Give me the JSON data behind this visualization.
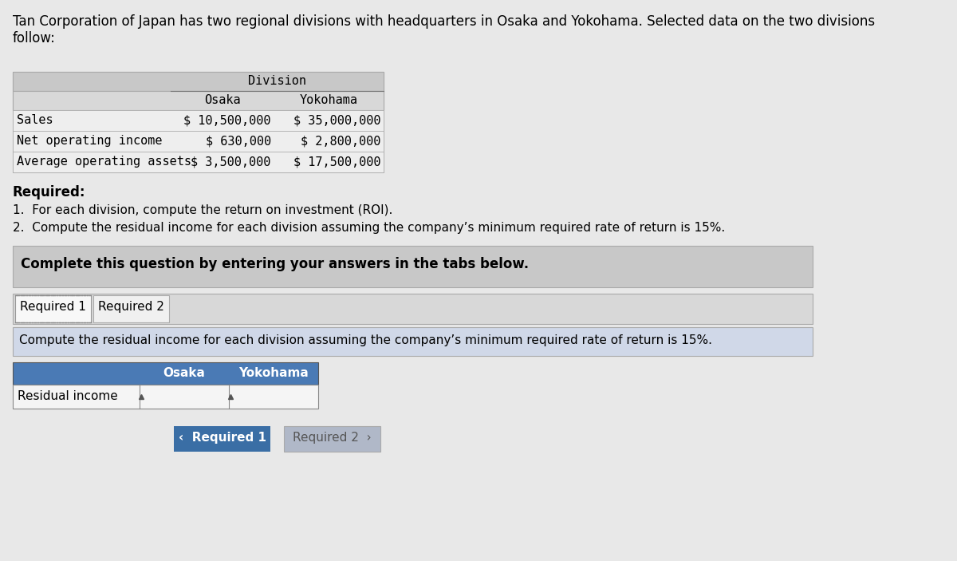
{
  "bg_color": "#e8e8e8",
  "white": "#ffffff",
  "header_text": "Tan Corporation of Japan has two regional divisions with headquarters in Osaka and Yokohama. Selected data on the two divisions\nfollow:",
  "table1": {
    "header_top": "Division",
    "col_headers": [
      "Osaka",
      "Yokohama"
    ],
    "row_labels": [
      "Sales",
      "Net operating income",
      "Average operating assets"
    ],
    "osaka_values": [
      "$ 10,500,000",
      "$ 630,000",
      "$ 3,500,000"
    ],
    "yokohama_values": [
      "$ 35,000,000",
      "$ 2,800,000",
      "$ 17,500,000"
    ],
    "bg_header": "#d0d0d0",
    "bg_data": "#f0f0f0"
  },
  "required_label": "Required:",
  "req_items": [
    "1.  For each division, compute the return on investment (ROI).",
    "2.  Compute the residual income for each division assuming the company’s minimum required rate of return is 15%."
  ],
  "complete_box_bg": "#c8c8c8",
  "complete_text": "Complete this question by entering your answers in the tabs below.",
  "tabs": [
    "Required 1",
    "Required 2"
  ],
  "tab_active_bg": "#ffffff",
  "tab_inactive_bg": "#f0f0f0",
  "instruction_bg": "#d0d8e8",
  "instruction_text": "Compute the residual income for each division assuming the company’s minimum required rate of return is 15%.",
  "table2": {
    "col_headers": [
      "Osaka",
      "Yokohama"
    ],
    "row_labels": [
      "Residual income"
    ],
    "header_bg": "#4a7ab5",
    "header_text_color": "#ffffff",
    "row_bg": "#f5f5f5",
    "border_color": "#333333"
  },
  "btn_req1_bg": "#3a6ea5",
  "btn_req1_text": "‹  Required 1",
  "btn_req2_bg": "#b0b8c8",
  "btn_req2_text": "Required 2  ›",
  "font_mono": "monospace",
  "font_sans": "sans-serif"
}
